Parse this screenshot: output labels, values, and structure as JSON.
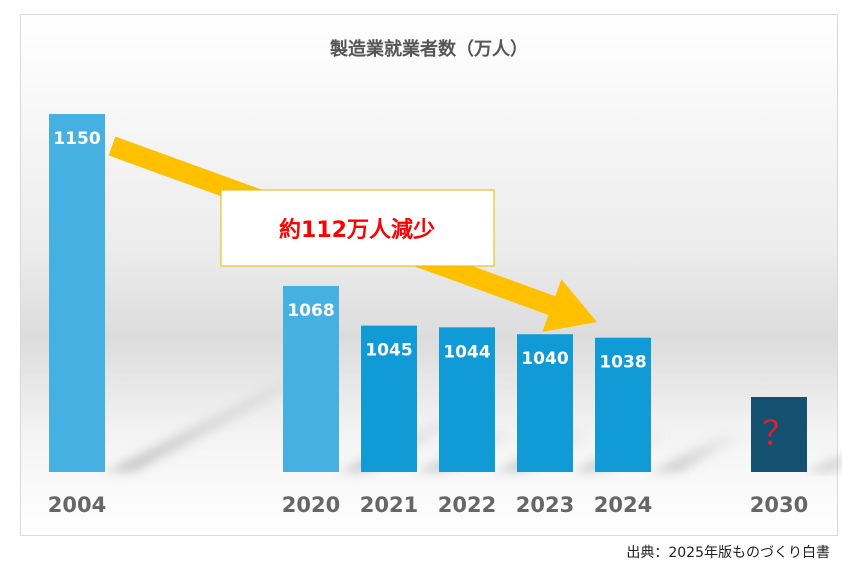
{
  "chart_data": {
    "type": "bar",
    "title": "製造業就業者数（万人）",
    "categories": [
      "2004",
      "2020",
      "2021",
      "2022",
      "2023",
      "2024",
      "2030"
    ],
    "values": [
      1150,
      1068,
      1045,
      1044,
      1040,
      1038,
      null
    ],
    "value_labels": [
      "1150",
      "1068",
      "1045",
      "1044",
      "1040",
      "1038",
      "？"
    ],
    "annotation": "約112万人減少",
    "source": "出典：2025年版ものづくり白書",
    "colors": {
      "light_bar": "#47b0e2",
      "dark_bar": "#119bd6",
      "unknown_bar": "#14506f",
      "arrow": "#ffc000",
      "annotation_text": "#ff0000",
      "question_mark": "#e0202a"
    }
  }
}
